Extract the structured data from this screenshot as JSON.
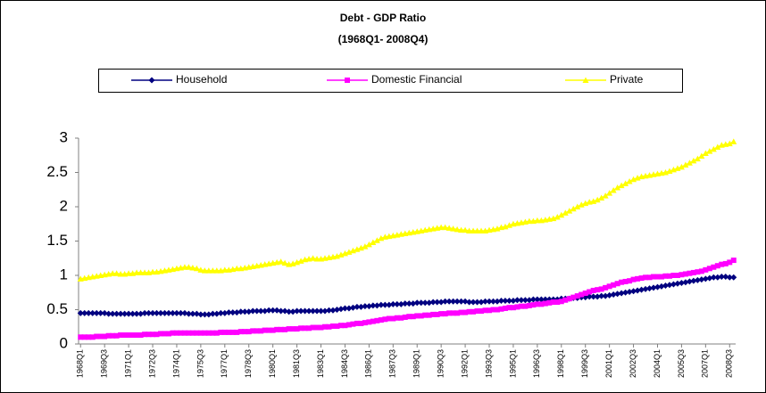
{
  "chart_data": {
    "type": "line",
    "title": "Debt - GDP Ratio",
    "subtitle": "(1968Q1- 2008Q4)",
    "legend": "top",
    "categories": [
      "1968Q1",
      null,
      null,
      null,
      null,
      null,
      "1969Q3",
      null,
      null,
      null,
      null,
      null,
      "1971Q1",
      null,
      null,
      null,
      null,
      null,
      "1972Q3",
      null,
      null,
      null,
      null,
      null,
      "1974Q1",
      null,
      null,
      null,
      null,
      null,
      "1975Q3",
      null,
      null,
      null,
      null,
      null,
      "1977Q1",
      null,
      null,
      null,
      null,
      null,
      "1978Q3",
      null,
      null,
      null,
      null,
      null,
      "1980Q1",
      null,
      null,
      null,
      null,
      null,
      "1981Q3",
      null,
      null,
      null,
      null,
      null,
      "1983Q1",
      null,
      null,
      null,
      null,
      null,
      "1984Q3",
      null,
      null,
      null,
      null,
      null,
      "1986Q1",
      null,
      null,
      null,
      null,
      null,
      "1987Q3",
      null,
      null,
      null,
      null,
      null,
      "1989Q1",
      null,
      null,
      null,
      null,
      null,
      "1990Q3",
      null,
      null,
      null,
      null,
      null,
      "1992Q1",
      null,
      null,
      null,
      null,
      null,
      "1993Q3",
      null,
      null,
      null,
      null,
      null,
      "1995Q1",
      null,
      null,
      null,
      null,
      null,
      "1996Q3",
      null,
      null,
      null,
      null,
      null,
      "1998Q1",
      null,
      null,
      null,
      null,
      null,
      "1999Q3",
      null,
      null,
      null,
      null,
      null,
      "2001Q1",
      null,
      null,
      null,
      null,
      null,
      "2002Q3",
      null,
      null,
      null,
      null,
      null,
      "2004Q1",
      null,
      null,
      null,
      null,
      null,
      "2005Q3",
      null,
      null,
      null,
      null,
      null,
      "2007Q1",
      null,
      null,
      null,
      null,
      null,
      "2008Q3",
      null
    ],
    "series": [
      {
        "name": "Household",
        "color": "#000080",
        "marker": "diamond",
        "values": [
          0.45,
          0.45,
          0.45,
          0.45,
          0.45,
          0.45,
          0.45,
          0.44,
          0.44,
          0.44,
          0.44,
          0.44,
          0.44,
          0.44,
          0.44,
          0.44,
          0.45,
          0.45,
          0.45,
          0.45,
          0.45,
          0.45,
          0.45,
          0.45,
          0.45,
          0.45,
          0.45,
          0.44,
          0.44,
          0.44,
          0.43,
          0.43,
          0.43,
          0.44,
          0.44,
          0.45,
          0.45,
          0.46,
          0.46,
          0.46,
          0.47,
          0.47,
          0.47,
          0.48,
          0.48,
          0.48,
          0.48,
          0.49,
          0.49,
          0.49,
          0.48,
          0.48,
          0.47,
          0.47,
          0.48,
          0.48,
          0.48,
          0.48,
          0.48,
          0.48,
          0.48,
          0.48,
          0.49,
          0.49,
          0.5,
          0.51,
          0.52,
          0.52,
          0.53,
          0.54,
          0.54,
          0.55,
          0.55,
          0.56,
          0.56,
          0.57,
          0.57,
          0.57,
          0.58,
          0.58,
          0.58,
          0.59,
          0.59,
          0.59,
          0.6,
          0.6,
          0.6,
          0.6,
          0.61,
          0.61,
          0.61,
          0.62,
          0.62,
          0.62,
          0.62,
          0.62,
          0.62,
          0.61,
          0.61,
          0.61,
          0.61,
          0.62,
          0.62,
          0.62,
          0.62,
          0.63,
          0.63,
          0.63,
          0.63,
          0.64,
          0.64,
          0.64,
          0.64,
          0.65,
          0.65,
          0.65,
          0.65,
          0.65,
          0.65,
          0.65,
          0.66,
          0.66,
          0.66,
          0.67,
          0.67,
          0.68,
          0.68,
          0.69,
          0.69,
          0.69,
          0.7,
          0.7,
          0.71,
          0.72,
          0.73,
          0.74,
          0.75,
          0.76,
          0.77,
          0.78,
          0.79,
          0.8,
          0.81,
          0.82,
          0.83,
          0.84,
          0.85,
          0.86,
          0.87,
          0.88,
          0.89,
          0.9,
          0.91,
          0.92,
          0.93,
          0.94,
          0.95,
          0.96,
          0.97,
          0.97,
          0.98,
          0.98,
          0.97,
          0.97
        ]
      },
      {
        "name": "Domestic Financial",
        "color": "#ff00ff",
        "marker": "square",
        "values": [
          0.1,
          0.1,
          0.1,
          0.1,
          0.11,
          0.11,
          0.11,
          0.12,
          0.12,
          0.12,
          0.13,
          0.13,
          0.13,
          0.13,
          0.13,
          0.13,
          0.14,
          0.14,
          0.14,
          0.14,
          0.15,
          0.15,
          0.15,
          0.16,
          0.16,
          0.16,
          0.16,
          0.16,
          0.16,
          0.16,
          0.16,
          0.16,
          0.16,
          0.16,
          0.16,
          0.17,
          0.17,
          0.17,
          0.17,
          0.17,
          0.18,
          0.18,
          0.18,
          0.19,
          0.19,
          0.19,
          0.2,
          0.2,
          0.2,
          0.21,
          0.21,
          0.21,
          0.22,
          0.22,
          0.22,
          0.23,
          0.23,
          0.23,
          0.24,
          0.24,
          0.24,
          0.25,
          0.25,
          0.26,
          0.26,
          0.27,
          0.27,
          0.28,
          0.29,
          0.3,
          0.3,
          0.31,
          0.32,
          0.33,
          0.34,
          0.35,
          0.36,
          0.37,
          0.37,
          0.38,
          0.38,
          0.39,
          0.4,
          0.4,
          0.41,
          0.41,
          0.42,
          0.42,
          0.43,
          0.43,
          0.44,
          0.44,
          0.45,
          0.45,
          0.45,
          0.46,
          0.46,
          0.47,
          0.47,
          0.48,
          0.48,
          0.49,
          0.49,
          0.5,
          0.5,
          0.51,
          0.52,
          0.53,
          0.53,
          0.54,
          0.55,
          0.55,
          0.56,
          0.57,
          0.58,
          0.58,
          0.59,
          0.6,
          0.61,
          0.61,
          0.62,
          0.64,
          0.66,
          0.68,
          0.7,
          0.72,
          0.74,
          0.76,
          0.78,
          0.79,
          0.8,
          0.82,
          0.84,
          0.86,
          0.88,
          0.9,
          0.91,
          0.92,
          0.94,
          0.95,
          0.96,
          0.97,
          0.97,
          0.98,
          0.98,
          0.98,
          0.99,
          0.99,
          1.0,
          1.0,
          1.01,
          1.02,
          1.03,
          1.04,
          1.05,
          1.06,
          1.08,
          1.1,
          1.12,
          1.14,
          1.16,
          1.17,
          1.19,
          1.22
        ]
      },
      {
        "name": "Private",
        "color": "#ffff00",
        "marker": "triangle",
        "values": [
          0.95,
          0.96,
          0.97,
          0.98,
          0.99,
          1.0,
          1.01,
          1.02,
          1.03,
          1.03,
          1.02,
          1.02,
          1.03,
          1.03,
          1.04,
          1.04,
          1.04,
          1.04,
          1.05,
          1.05,
          1.06,
          1.07,
          1.08,
          1.09,
          1.1,
          1.11,
          1.12,
          1.12,
          1.11,
          1.1,
          1.08,
          1.07,
          1.07,
          1.07,
          1.07,
          1.07,
          1.08,
          1.08,
          1.09,
          1.1,
          1.1,
          1.11,
          1.12,
          1.13,
          1.14,
          1.15,
          1.16,
          1.17,
          1.18,
          1.19,
          1.2,
          1.18,
          1.16,
          1.17,
          1.19,
          1.21,
          1.23,
          1.24,
          1.25,
          1.24,
          1.24,
          1.25,
          1.26,
          1.27,
          1.28,
          1.3,
          1.32,
          1.34,
          1.36,
          1.38,
          1.4,
          1.42,
          1.45,
          1.48,
          1.51,
          1.54,
          1.56,
          1.57,
          1.58,
          1.59,
          1.6,
          1.61,
          1.62,
          1.63,
          1.64,
          1.65,
          1.66,
          1.67,
          1.68,
          1.69,
          1.7,
          1.7,
          1.69,
          1.68,
          1.67,
          1.66,
          1.66,
          1.65,
          1.65,
          1.65,
          1.65,
          1.65,
          1.66,
          1.67,
          1.68,
          1.7,
          1.71,
          1.73,
          1.75,
          1.76,
          1.77,
          1.78,
          1.79,
          1.79,
          1.8,
          1.8,
          1.81,
          1.82,
          1.83,
          1.85,
          1.88,
          1.91,
          1.94,
          1.97,
          2.0,
          2.03,
          2.05,
          2.07,
          2.08,
          2.1,
          2.13,
          2.16,
          2.2,
          2.24,
          2.28,
          2.31,
          2.34,
          2.37,
          2.4,
          2.42,
          2.44,
          2.45,
          2.46,
          2.47,
          2.48,
          2.49,
          2.5,
          2.52,
          2.54,
          2.56,
          2.58,
          2.61,
          2.64,
          2.67,
          2.7,
          2.74,
          2.78,
          2.81,
          2.84,
          2.87,
          2.9,
          2.91,
          2.92,
          2.95
        ]
      }
    ],
    "ylim": [
      0,
      3
    ],
    "yticks": [
      0,
      0.5,
      1,
      1.5,
      2,
      2.5,
      3
    ],
    "grid": false
  }
}
